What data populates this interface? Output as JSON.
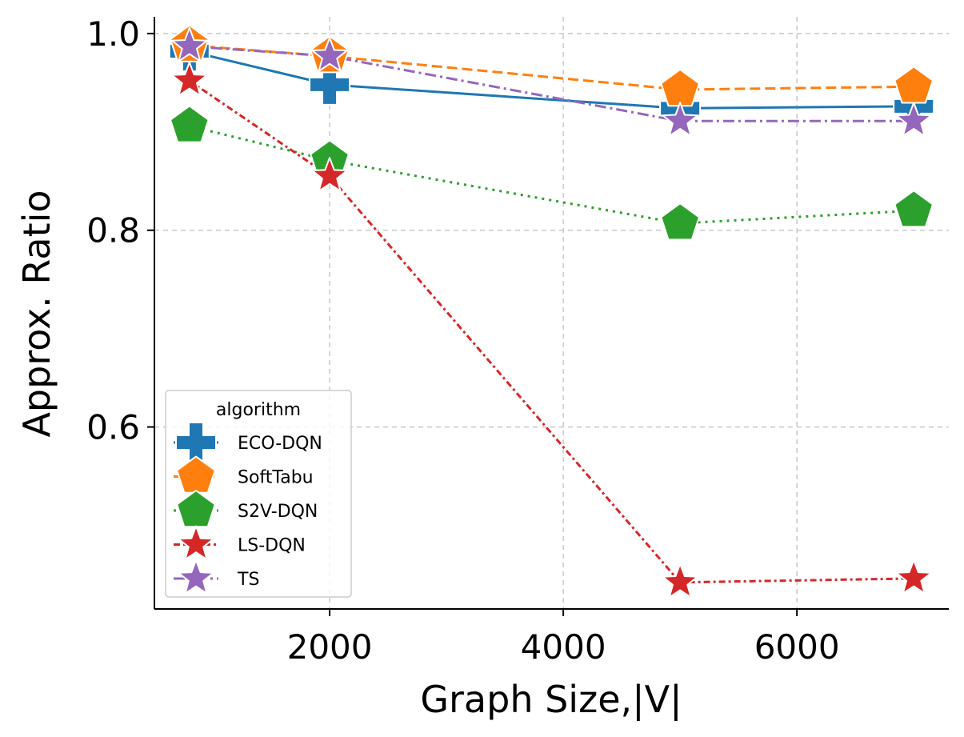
{
  "chart_data": {
    "type": "line",
    "xlabel": "Graph Size,|V|",
    "ylabel": "Approx. Ratio",
    "x": [
      800,
      2000,
      5000,
      7000
    ],
    "xlim": [
      500,
      7300
    ],
    "ylim": [
      0.415,
      1.017
    ],
    "xticks": [
      2000,
      4000,
      6000
    ],
    "xtick_labels": [
      "2000",
      "4000",
      "6000"
    ],
    "yticks": [
      0.6,
      0.8,
      1.0
    ],
    "ytick_labels": [
      "0.6",
      "0.8",
      "1.0"
    ],
    "grid": true,
    "legend": {
      "title": "algorithm",
      "placement": "lower-left"
    },
    "series": [
      {
        "name": "ECO-DQN",
        "color": "#1f77b4",
        "marker": "plus-icon",
        "dash": "solid",
        "values": [
          0.982,
          0.948,
          0.924,
          0.926
        ]
      },
      {
        "name": "SoftTabu",
        "color": "#ff7f0e",
        "marker": "pentagon-icon",
        "dash": "dashed",
        "values": [
          0.988,
          0.977,
          0.943,
          0.946
        ]
      },
      {
        "name": "S2V-DQN",
        "color": "#2ca02c",
        "marker": "pentagon-icon",
        "dash": "dotted",
        "values": [
          0.906,
          0.871,
          0.807,
          0.82
        ]
      },
      {
        "name": "LS-DQN",
        "color": "#d62728",
        "marker": "star-icon",
        "dash": "dashdot2",
        "values": [
          0.952,
          0.855,
          0.442,
          0.446
        ]
      },
      {
        "name": "TS",
        "color": "#9467bd",
        "marker": "star-icon",
        "dash": "dashdot",
        "values": [
          0.987,
          0.977,
          0.911,
          0.911
        ]
      }
    ]
  }
}
